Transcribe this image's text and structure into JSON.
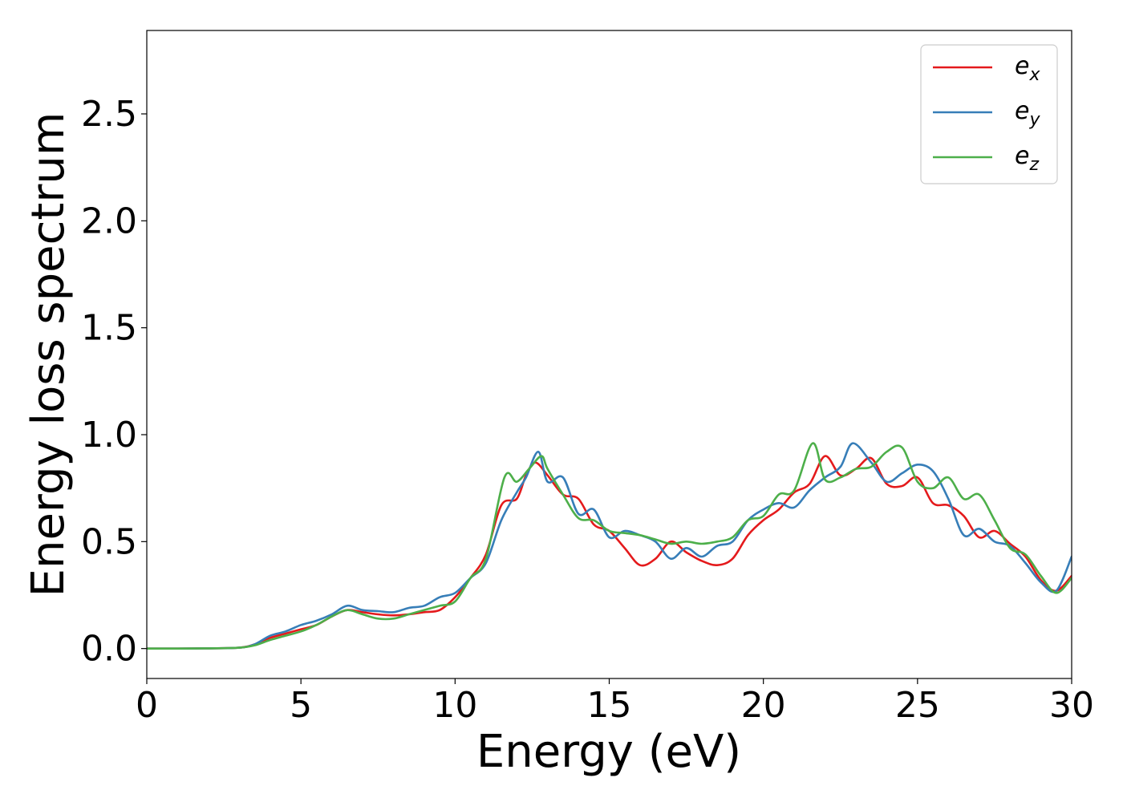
{
  "chart_data": {
    "type": "line",
    "xlabel": "Energy (eV)",
    "ylabel": "Energy loss spectrum",
    "xlim": [
      0,
      30
    ],
    "ylim": [
      -0.14,
      2.89
    ],
    "x_ticks": [
      "0",
      "5",
      "10",
      "15",
      "20",
      "25",
      "30"
    ],
    "y_ticks": [
      "0.0",
      "0.5",
      "1.0",
      "1.5",
      "2.0",
      "2.5"
    ],
    "x_tick_values": [
      0,
      5,
      10,
      15,
      20,
      25,
      30
    ],
    "y_tick_values": [
      0.0,
      0.5,
      1.0,
      1.5,
      2.0,
      2.5
    ],
    "grid": false,
    "legend_position": "top-right",
    "series": [
      {
        "name": "e_x",
        "label_base": "e",
        "label_sub": "x",
        "color": "#e41a1c",
        "x": [
          0,
          1,
          2,
          3,
          3.5,
          4,
          4.5,
          5,
          5.5,
          6,
          6.5,
          7,
          7.5,
          8,
          8.5,
          9,
          9.5,
          10,
          10.5,
          11,
          11.5,
          12,
          12.3,
          12.6,
          13,
          13.5,
          14,
          14.5,
          15,
          15.5,
          16,
          16.5,
          17,
          17.5,
          18,
          18.5,
          19,
          19.5,
          20,
          20.5,
          21,
          21.5,
          22,
          22.5,
          23,
          23.5,
          24,
          24.5,
          25,
          25.5,
          26,
          26.5,
          27,
          27.5,
          28,
          28.5,
          29,
          29.5,
          30
        ],
        "y": [
          0,
          0,
          0.001,
          0.004,
          0.02,
          0.05,
          0.07,
          0.09,
          0.11,
          0.15,
          0.18,
          0.17,
          0.16,
          0.155,
          0.16,
          0.17,
          0.18,
          0.24,
          0.33,
          0.44,
          0.67,
          0.7,
          0.81,
          0.87,
          0.81,
          0.72,
          0.7,
          0.58,
          0.55,
          0.47,
          0.39,
          0.42,
          0.5,
          0.45,
          0.41,
          0.39,
          0.42,
          0.53,
          0.6,
          0.65,
          0.73,
          0.77,
          0.9,
          0.81,
          0.84,
          0.89,
          0.77,
          0.76,
          0.8,
          0.68,
          0.67,
          0.62,
          0.52,
          0.55,
          0.49,
          0.43,
          0.32,
          0.27,
          0.34
        ]
      },
      {
        "name": "e_y",
        "label_base": "e",
        "label_sub": "y",
        "color": "#377eb8",
        "x": [
          0,
          1,
          2,
          3,
          3.5,
          4,
          4.5,
          5,
          5.5,
          6,
          6.5,
          7,
          7.5,
          8,
          8.5,
          9,
          9.5,
          10,
          10.5,
          11,
          11.5,
          12,
          12.3,
          12.7,
          13,
          13.5,
          14,
          14.5,
          15,
          15.5,
          16,
          16.5,
          17,
          17.5,
          18,
          18.5,
          19,
          19.5,
          20,
          20.5,
          21,
          21.5,
          22,
          22.5,
          22.9,
          23.5,
          24,
          24.5,
          25,
          25.5,
          26,
          26.5,
          27,
          27.5,
          28,
          28.5,
          29,
          29.5,
          30
        ],
        "y": [
          0,
          0,
          0.001,
          0.004,
          0.02,
          0.06,
          0.08,
          0.11,
          0.13,
          0.16,
          0.2,
          0.18,
          0.175,
          0.17,
          0.19,
          0.2,
          0.24,
          0.26,
          0.33,
          0.4,
          0.6,
          0.73,
          0.8,
          0.92,
          0.78,
          0.8,
          0.63,
          0.65,
          0.52,
          0.55,
          0.53,
          0.5,
          0.42,
          0.47,
          0.43,
          0.48,
          0.5,
          0.6,
          0.65,
          0.68,
          0.66,
          0.74,
          0.8,
          0.85,
          0.96,
          0.87,
          0.78,
          0.82,
          0.86,
          0.83,
          0.7,
          0.53,
          0.56,
          0.5,
          0.48,
          0.4,
          0.31,
          0.27,
          0.43
        ]
      },
      {
        "name": "e_z",
        "label_base": "e",
        "label_sub": "z",
        "color": "#4daf4a",
        "x": [
          0,
          1,
          2,
          3,
          3.5,
          4,
          4.5,
          5,
          5.5,
          6,
          6.5,
          7,
          7.5,
          8,
          8.5,
          9,
          9.5,
          10,
          10.5,
          11,
          11.6,
          12,
          12.4,
          12.8,
          13,
          13.5,
          14,
          14.5,
          15,
          15.5,
          16,
          16.5,
          17,
          17.5,
          18,
          18.5,
          19,
          19.5,
          20,
          20.5,
          21,
          21.6,
          22,
          22.5,
          23,
          23.5,
          24,
          24.5,
          25,
          25.5,
          26,
          26.5,
          27,
          27.5,
          28,
          28.5,
          29,
          29.5,
          30
        ],
        "y": [
          0,
          0,
          0.001,
          0.004,
          0.015,
          0.04,
          0.06,
          0.08,
          0.11,
          0.15,
          0.18,
          0.16,
          0.14,
          0.14,
          0.16,
          0.18,
          0.2,
          0.22,
          0.33,
          0.42,
          0.8,
          0.78,
          0.84,
          0.9,
          0.84,
          0.72,
          0.61,
          0.6,
          0.55,
          0.54,
          0.53,
          0.51,
          0.49,
          0.5,
          0.49,
          0.5,
          0.52,
          0.6,
          0.62,
          0.72,
          0.74,
          0.96,
          0.79,
          0.8,
          0.84,
          0.85,
          0.92,
          0.94,
          0.78,
          0.75,
          0.8,
          0.7,
          0.72,
          0.6,
          0.47,
          0.44,
          0.34,
          0.26,
          0.33
        ]
      }
    ]
  }
}
